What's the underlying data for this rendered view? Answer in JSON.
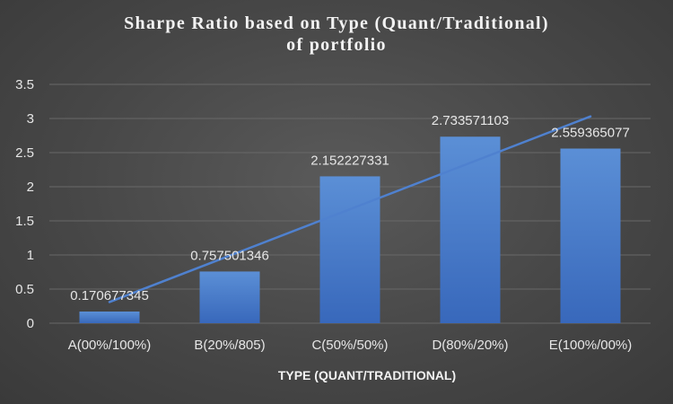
{
  "chart_data": {
    "type": "bar",
    "title_lines": [
      "Sharpe Ratio based on Type (Quant/Traditional)",
      "of portfolio"
    ],
    "xlabel": "TYPE (QUANT/TRADITIONAL)",
    "ylabel": "",
    "categories": [
      "A(00%/100%)",
      "B(20%/805)",
      "C(50%/50%)",
      "D(80%/20%)",
      "E(100%/00%)"
    ],
    "values": [
      0.170677345,
      0.757501346,
      2.152227331,
      2.733571103,
      2.559365077
    ],
    "data_labels": [
      "0.170677345",
      "0.757501346",
      "2.152227331",
      "2.733571103",
      "2.559365077"
    ],
    "yticks": [
      "0",
      "0.5",
      "1",
      "1.5",
      "2",
      "2.5",
      "3",
      "3.5"
    ],
    "ylim": [
      0,
      3.5
    ],
    "trendline": {
      "type": "linear",
      "start": 0.31,
      "end": 3.03
    },
    "grid": true,
    "legend": "none",
    "colors": {
      "bar_top": "#5b8fd6",
      "bar_bottom": "#3868bb",
      "trendline": "#4f81cf",
      "gridline": "#686868",
      "text": "#e6e6e6"
    }
  }
}
